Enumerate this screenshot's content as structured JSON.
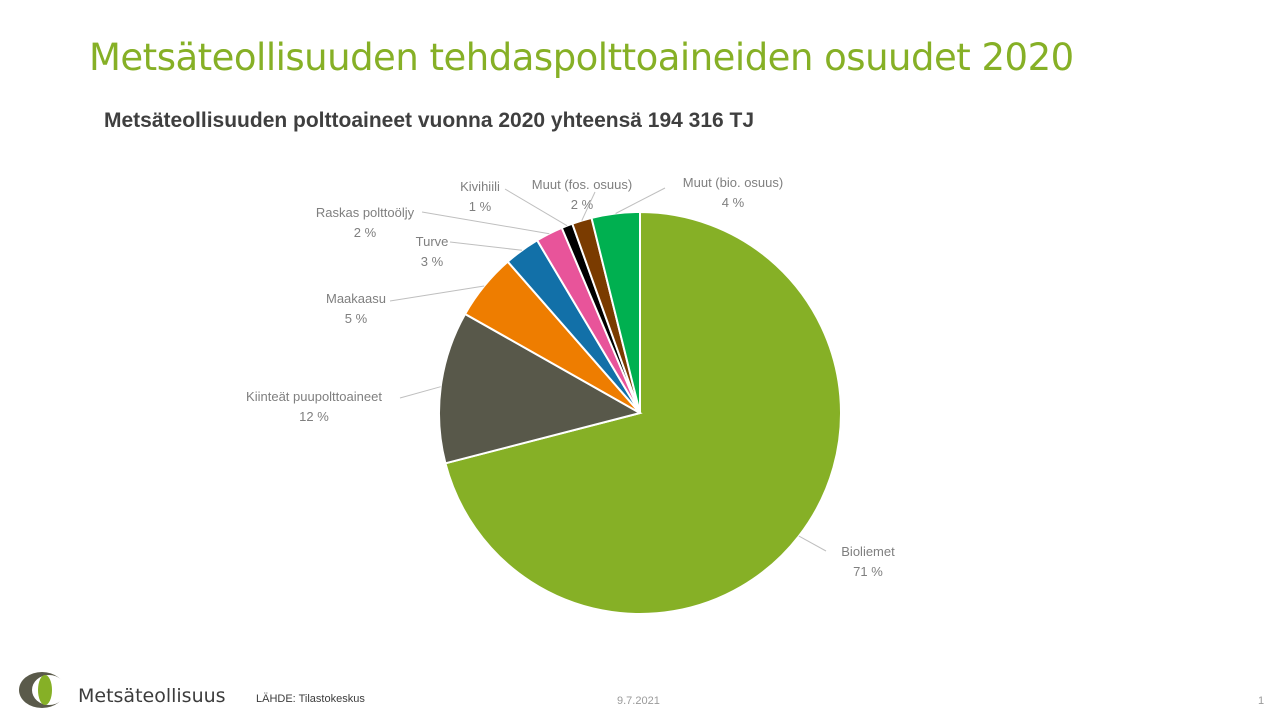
{
  "slide": {
    "title": "Metsäteollisuuden tehdaspolttoaineiden osuudet 2020"
  },
  "chart_data": {
    "type": "pie",
    "title": "Metsäteollisuuden polttoaineet vuonna 2020 yhteensä 194 316 TJ",
    "start_angle_deg": 0,
    "direction": "clockwise",
    "slices": [
      {
        "label": "Bioliemet",
        "value": 71.4,
        "display": "71 %",
        "color": "#86b026"
      },
      {
        "label": "Kiinteät puupolttoaineet",
        "value": 12.3,
        "display": "12 %",
        "color": "#58584a"
      },
      {
        "label": "Maakaasu",
        "value": 5.4,
        "display": "5 %",
        "color": "#ee7d00"
      },
      {
        "label": "Turve",
        "value": 2.9,
        "display": "3 %",
        "color": "#1270a8"
      },
      {
        "label": "Raskas polttoöljy",
        "value": 2.2,
        "display": "2 %",
        "color": "#e8549a"
      },
      {
        "label": "Kivihiili",
        "value": 0.9,
        "display": "1 %",
        "color": "#000000"
      },
      {
        "label": "Muut (fos. osuus)",
        "value": 1.6,
        "display": "2 %",
        "color": "#7a3b00"
      },
      {
        "label": "Muut (bio. osuus)",
        "value": 3.9,
        "display": "4 %",
        "color": "#00b050"
      }
    ],
    "legend": "none",
    "label_color": "#7f7f7f"
  },
  "footer": {
    "brand": "Metsäteollisuus",
    "source": "LÄHDE:  Tilastokeskus",
    "date": "9.7.2021",
    "page": "1"
  },
  "colors": {
    "title_green": "#86b026",
    "logo_dark": "#5a5a4a",
    "logo_green": "#86b026"
  },
  "icons": {
    "logo": "metsateollisuus-logo-icon"
  }
}
